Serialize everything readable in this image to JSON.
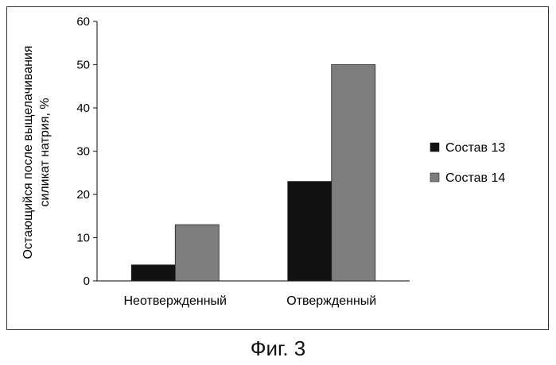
{
  "chart_data": {
    "type": "bar",
    "ylabel": "Остающийся после выщелачивания силикат натрия, %",
    "ylabel_lines": [
      "Остающийся после выщелачивания",
      "силикат натрия, %"
    ],
    "categories": [
      "Неотвержденный",
      "Отвержденный"
    ],
    "series": [
      {
        "name": "Состав 13",
        "values": [
          3.7,
          23
        ],
        "color": "#111111"
      },
      {
        "name": "Состав 14",
        "values": [
          13,
          50
        ],
        "color": "#7d7d7d"
      }
    ],
    "ylim": [
      0,
      60
    ],
    "yticks": [
      "0",
      "10",
      "20",
      "30",
      "40",
      "50",
      "60"
    ],
    "grid": false,
    "legend": "right"
  },
  "caption": "Фиг. 3"
}
